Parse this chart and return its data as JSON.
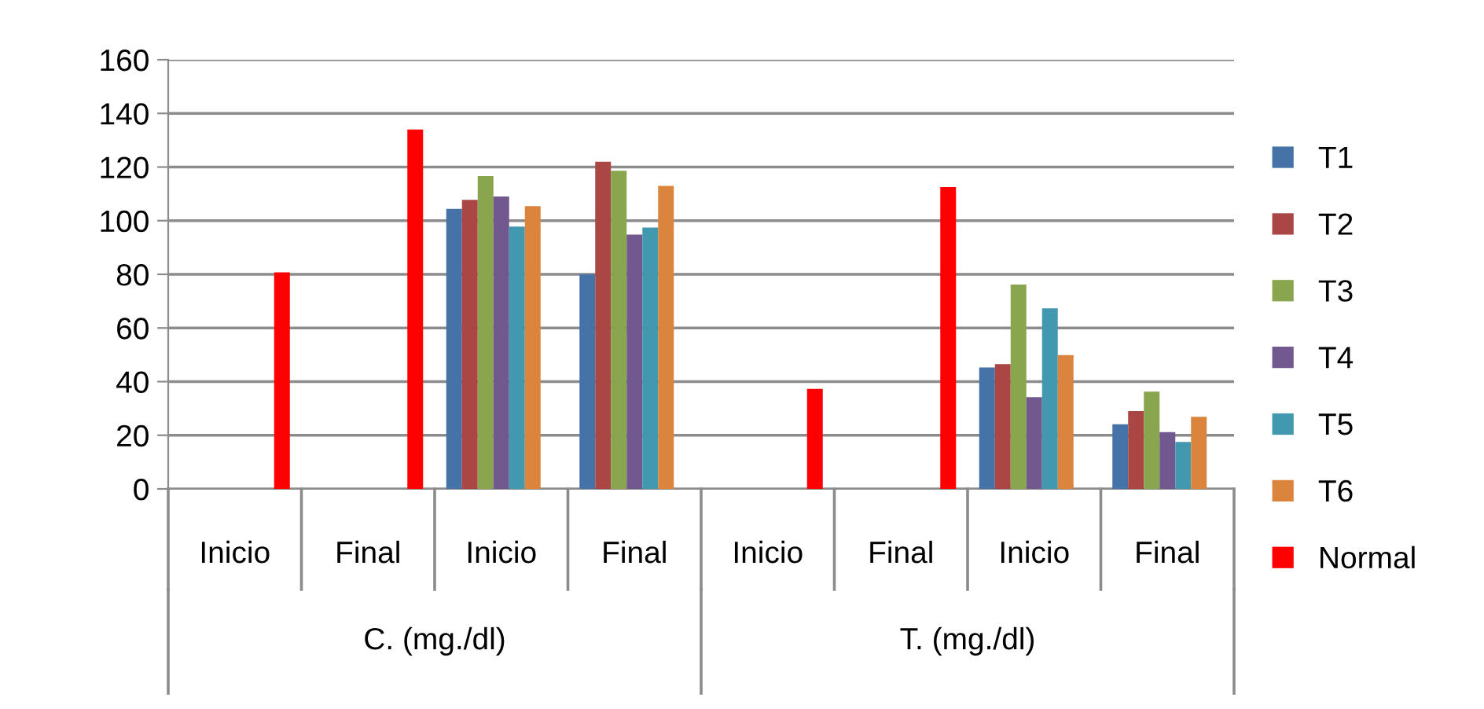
{
  "chart_data": {
    "type": "bar",
    "categories": [
      "Inicio",
      "Final",
      "Inicio",
      "Final",
      "Inicio",
      "Final",
      "Inicio",
      "Final"
    ],
    "series": [
      {
        "name": "T1",
        "color": "#4572a7",
        "values": [
          null,
          null,
          104.4,
          80,
          null,
          null,
          45.3,
          24.1
        ]
      },
      {
        "name": "T2",
        "color": "#aa4643",
        "values": [
          null,
          null,
          107.8,
          122,
          null,
          null,
          46.5,
          29
        ]
      },
      {
        "name": "T3",
        "color": "#89a54e",
        "values": [
          null,
          null,
          116.6,
          118.6,
          null,
          null,
          76.2,
          36.3
        ]
      },
      {
        "name": "T4",
        "color": "#71588f",
        "values": [
          null,
          null,
          109,
          94.8,
          null,
          null,
          34.2,
          21.2
        ]
      },
      {
        "name": "T5",
        "color": "#4198af",
        "values": [
          null,
          null,
          97.8,
          97.4,
          null,
          null,
          67.3,
          17.5
        ]
      },
      {
        "name": "T6",
        "color": "#db843d",
        "values": [
          null,
          null,
          105.4,
          113,
          null,
          null,
          49.9,
          26.9
        ]
      },
      {
        "name": "Normal",
        "color": "#ff0000",
        "values": [
          80.7,
          134,
          null,
          null,
          37.3,
          112.5,
          null,
          null
        ]
      }
    ],
    "annotations": [
      "C. (mg./dl)",
      "T. (mg./dl)"
    ],
    "ylim": [
      0,
      160
    ],
    "yticks": [
      0,
      20,
      40,
      60,
      80,
      100,
      120,
      140,
      160
    ],
    "grid": "y",
    "legend": "right"
  }
}
